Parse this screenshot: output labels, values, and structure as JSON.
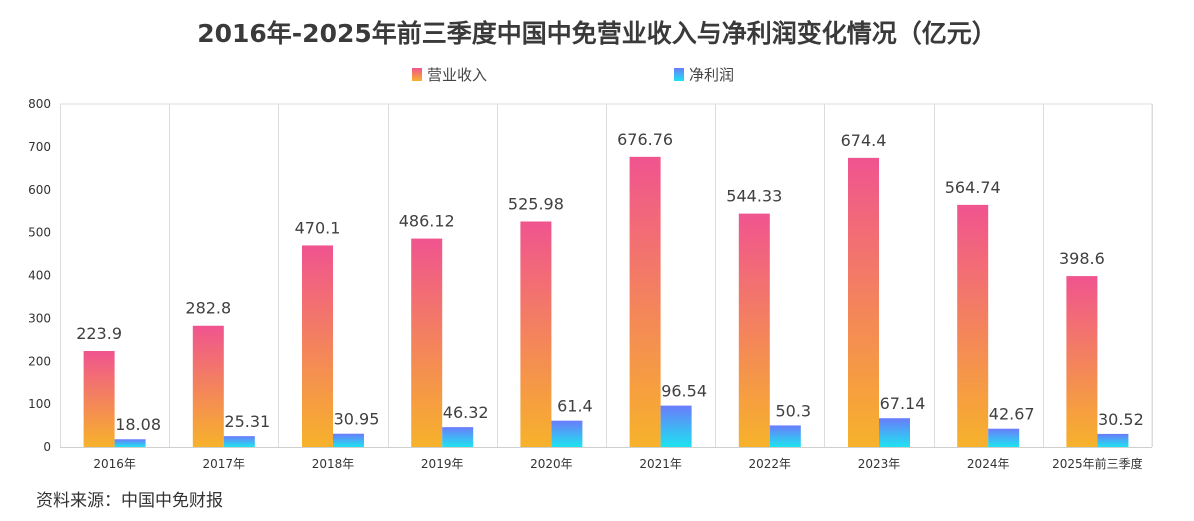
{
  "chart_data": {
    "type": "bar",
    "title": "2016年-2025年前三季度中国中免营业收入与净利润变化情况（亿元）",
    "xlabel": "",
    "ylabel": "",
    "ylim": [
      0,
      800
    ],
    "yticks": [
      0,
      100,
      200,
      300,
      400,
      500,
      600,
      700,
      800
    ],
    "grid": "vertical category separators",
    "legend_position": "top-center",
    "categories": [
      "2016年",
      "2017年",
      "2018年",
      "2019年",
      "2020年",
      "2021年",
      "2022年",
      "2023年",
      "2024年",
      "2025年前三季度"
    ],
    "series": [
      {
        "name": "营业收入",
        "colors": [
          "#f0548f",
          "#f7b22b"
        ],
        "values": [
          223.9,
          282.8,
          470.1,
          486.12,
          525.98,
          676.76,
          544.33,
          674.4,
          564.74,
          398.6
        ]
      },
      {
        "name": "净利润",
        "colors": [
          "#6a7cfb",
          "#1ee3f0"
        ],
        "values": [
          18.08,
          25.31,
          30.95,
          46.32,
          61.4,
          96.54,
          50.3,
          67.14,
          42.67,
          30.52
        ]
      }
    ]
  },
  "legend": {
    "revenue_label": "营业收入",
    "profit_label": "净利润"
  },
  "source": "资料来源：中国中免财报"
}
